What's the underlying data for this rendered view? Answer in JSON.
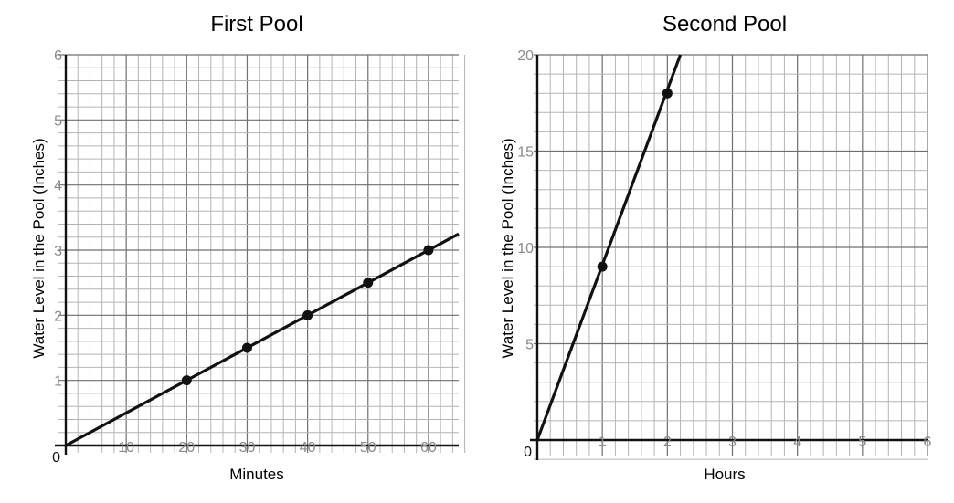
{
  "chart_data": [
    {
      "type": "line",
      "title": "First Pool",
      "xlabel": "Minutes",
      "ylabel": "Water Level in the Pool (Inches)",
      "xlim": [
        0,
        65
      ],
      "ylim": [
        0,
        6
      ],
      "x_ticks": [
        "10",
        "20",
        "30",
        "40",
        "50",
        "60"
      ],
      "y_ticks": [
        "1",
        "2",
        "3",
        "4",
        "5",
        "6"
      ],
      "origin_label": "0",
      "grid": true,
      "series": [
        {
          "x": [
            0,
            65
          ],
          "y": [
            0,
            3.25
          ]
        }
      ],
      "points": [
        {
          "x": 20,
          "y": 1
        },
        {
          "x": 30,
          "y": 1.5
        },
        {
          "x": 40,
          "y": 2
        },
        {
          "x": 50,
          "y": 2.5
        },
        {
          "x": 60,
          "y": 3
        }
      ],
      "color": "#111111"
    },
    {
      "type": "line",
      "title": "Second Pool",
      "xlabel": "Hours",
      "ylabel": "Water Level in the Pool (Inches)",
      "xlim": [
        0,
        6
      ],
      "ylim": [
        0,
        20
      ],
      "x_ticks": [
        "1",
        "2",
        "3",
        "4",
        "5",
        "6"
      ],
      "y_ticks": [
        "5",
        "10",
        "15",
        "20"
      ],
      "origin_label": "0",
      "grid": true,
      "series": [
        {
          "x": [
            0,
            2.2
          ],
          "y": [
            0,
            20
          ]
        }
      ],
      "points": [
        {
          "x": 1,
          "y": 9
        },
        {
          "x": 2,
          "y": 18
        }
      ],
      "color": "#111111"
    }
  ]
}
